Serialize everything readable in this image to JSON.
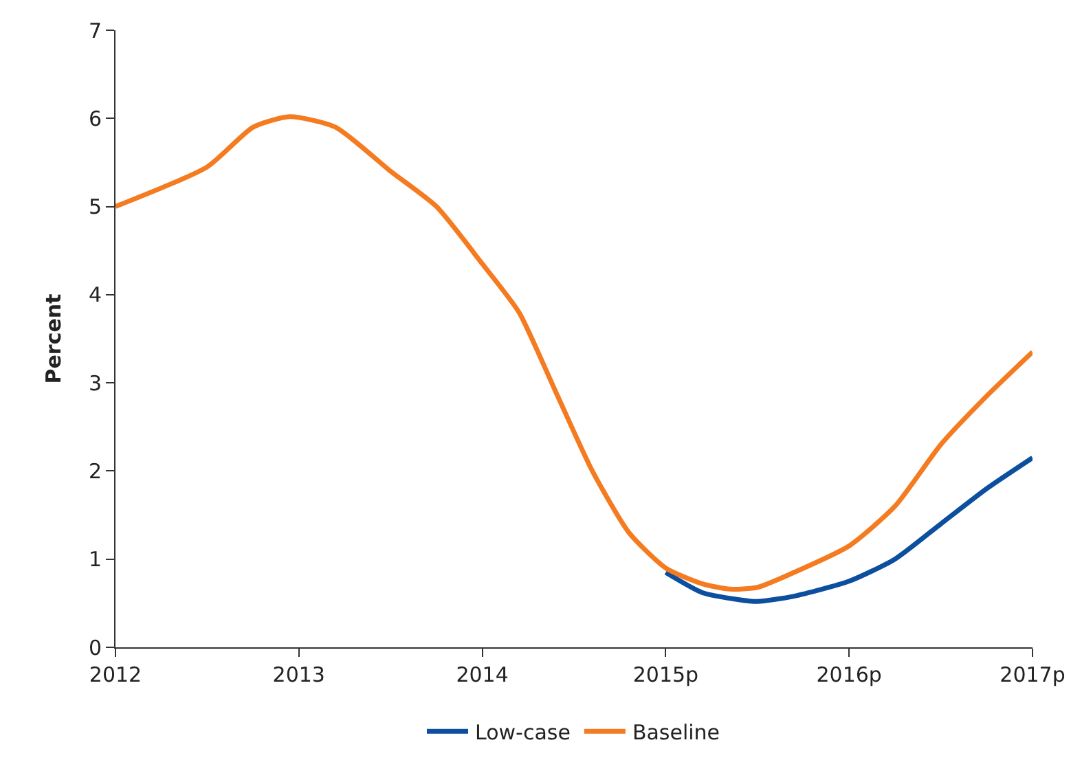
{
  "chart_data": {
    "type": "line",
    "ylabel": "Percent",
    "xlim": [
      2012,
      2017
    ],
    "xticks": [
      2012,
      2013,
      2014,
      {
        "value": 2015,
        "label": "2015p"
      },
      {
        "value": 2016,
        "label": "2016p"
      },
      {
        "value": 2017,
        "label": "2017p"
      }
    ],
    "ylim": [
      0,
      7
    ],
    "yticks": [
      0,
      1,
      2,
      3,
      4,
      5,
      6,
      7
    ],
    "series": [
      {
        "name": "Low-case",
        "color": "#0b4f9e",
        "x": [
          2015,
          2015.2,
          2015.4,
          2015.5,
          2015.7,
          2016,
          2016.25,
          2016.5,
          2016.75,
          2017
        ],
        "values": [
          0.85,
          0.62,
          0.54,
          0.52,
          0.58,
          0.75,
          1.0,
          1.4,
          1.8,
          2.15
        ]
      },
      {
        "name": "Baseline",
        "color": "#f47b20",
        "x": [
          2012,
          2012.5,
          2012.75,
          2012.95,
          2013.2,
          2013.5,
          2013.75,
          2014,
          2014.2,
          2014.4,
          2014.6,
          2014.8,
          2015,
          2015.2,
          2015.35,
          2015.5,
          2015.7,
          2016,
          2016.25,
          2016.5,
          2016.75,
          2017
        ],
        "values": [
          5.0,
          5.45,
          5.9,
          6.02,
          5.9,
          5.4,
          5.0,
          4.35,
          3.8,
          2.9,
          2.0,
          1.3,
          0.9,
          0.72,
          0.66,
          0.68,
          0.85,
          1.15,
          1.6,
          2.3,
          2.85,
          3.35
        ]
      }
    ],
    "grid": false,
    "legend": "bottom",
    "marker": "none",
    "line_style": "solid"
  }
}
